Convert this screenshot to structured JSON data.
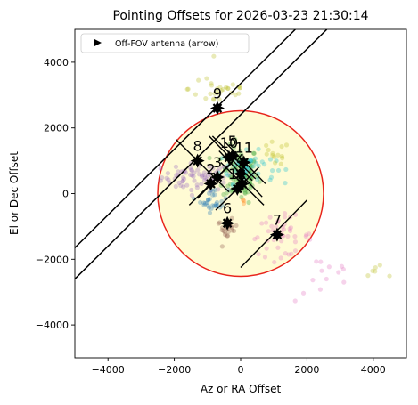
{
  "chart_data": {
    "type": "scatter",
    "title": "Pointing Offsets for 2026-03-23 21:30:14",
    "xlabel": "Az or RA Offset",
    "ylabel": "El or Dec Offset",
    "xlim": [
      -5000,
      5000
    ],
    "ylim": [
      -5000,
      5000
    ],
    "xticks": [
      -4000,
      -2000,
      0,
      2000,
      4000
    ],
    "yticks": [
      -4000,
      -2000,
      0,
      2000,
      4000
    ],
    "xtick_labels": [
      "−4000",
      "−2000",
      "0",
      "2000",
      "4000"
    ],
    "ytick_labels": [
      "−4000",
      "−2000",
      "0",
      "2000",
      "4000"
    ],
    "grid": false,
    "legend": {
      "placement": "top-left",
      "entries": [
        {
          "label": "Off-FOV antenna (arrow)",
          "marker": "triangle-right"
        }
      ]
    },
    "fov_circle": {
      "center": [
        0,
        0
      ],
      "radius": 2500,
      "edge_color": "#e8241c",
      "fill_color": "#fffbd4"
    },
    "boundary_lines": [
      {
        "from": [
          -5000,
          -1650
        ],
        "to": [
          1650,
          5000
        ]
      },
      {
        "from": [
          -5000,
          -2600
        ],
        "to": [
          2600,
          5000
        ]
      }
    ],
    "fill_colors": {
      "clusters": [
        "#9467bd",
        "#2ca02c",
        "#17becf",
        "#8c564b",
        "#e377c2",
        "#bcbd22",
        "#1f77b4",
        "#ff7f0e"
      ]
    },
    "scatter_clusters": [
      {
        "center": [
          -1300,
          500
        ],
        "spread": [
          900,
          350
        ],
        "count": 70,
        "color": "#9467bd"
      },
      {
        "center": [
          0,
          600
        ],
        "spread": [
          450,
          700
        ],
        "count": 110,
        "color": "#2ca02c"
      },
      {
        "center": [
          200,
          800
        ],
        "spread": [
          700,
          400
        ],
        "count": 50,
        "color": "#17becf"
      },
      {
        "center": [
          -800,
          -200
        ],
        "spread": [
          350,
          300
        ],
        "count": 30,
        "color": "#1f77b4"
      },
      {
        "center": [
          -400,
          -1100
        ],
        "spread": [
          250,
          250
        ],
        "count": 22,
        "color": "#8c564b"
      },
      {
        "center": [
          1200,
          -1300
        ],
        "spread": [
          800,
          500
        ],
        "count": 45,
        "color": "#e377c2"
      },
      {
        "center": [
          2600,
          -2600
        ],
        "spread": [
          800,
          600
        ],
        "count": 12,
        "color": "#e377c2"
      },
      {
        "center": [
          -600,
          3200
        ],
        "spread": [
          800,
          500
        ],
        "count": 30,
        "color": "#bcbd22"
      },
      {
        "center": [
          4200,
          -2400
        ],
        "spread": [
          500,
          300
        ],
        "count": 6,
        "color": "#bcbd22"
      },
      {
        "center": [
          1000,
          1200
        ],
        "spread": [
          400,
          300
        ],
        "count": 14,
        "color": "#bcbd22"
      },
      {
        "center": [
          100,
          -250
        ],
        "spread": [
          120,
          100
        ],
        "count": 3,
        "color": "#ff7f0e"
      }
    ],
    "antennas": [
      {
        "label": "9",
        "x": -700,
        "y": 2600,
        "line": []
      },
      {
        "label": "8",
        "x": -1300,
        "y": 1000,
        "line": [
          [
            -1950,
            1650
          ],
          [
            -350,
            50
          ]
        ]
      },
      {
        "label": "10",
        "x": -350,
        "y": 1100,
        "line": [
          [
            -950,
            1750
          ],
          [
            350,
            400
          ]
        ]
      },
      {
        "label": "5",
        "x": -250,
        "y": 1150,
        "line": [
          [
            -850,
            1750
          ],
          [
            450,
            450
          ]
        ]
      },
      {
        "label": "11",
        "x": 100,
        "y": 950,
        "line": [
          [
            -500,
            1600
          ],
          [
            750,
            300
          ]
        ]
      },
      {
        "label": "2",
        "x": -900,
        "y": 300,
        "line": [
          [
            -1550,
            -350
          ],
          [
            -250,
            950
          ]
        ]
      },
      {
        "label": "3",
        "x": -700,
        "y": 500,
        "line": [
          [
            -1300,
            -150
          ],
          [
            -100,
            1150
          ]
        ]
      },
      {
        "label": "4",
        "x": 0,
        "y": 600,
        "line": [
          [
            -650,
            1300
          ],
          [
            650,
            -100
          ]
        ]
      },
      {
        "label": "12",
        "x": -100,
        "y": 150,
        "line": [
          [
            -750,
            -500
          ],
          [
            550,
            800
          ]
        ]
      },
      {
        "label": "1",
        "x": 50,
        "y": 300,
        "line": [
          [
            -600,
            950
          ],
          [
            700,
            -350
          ]
        ]
      },
      {
        "label": "6",
        "x": -400,
        "y": -900,
        "line": []
      },
      {
        "label": "7",
        "x": 1100,
        "y": -1250,
        "line": [
          [
            0,
            -2250
          ],
          [
            2000,
            -200
          ]
        ]
      }
    ]
  }
}
